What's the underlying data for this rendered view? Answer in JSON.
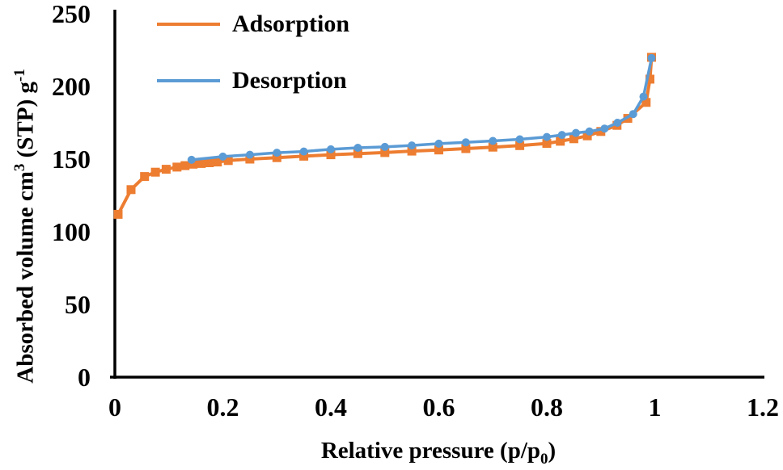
{
  "chart_data": {
    "type": "line",
    "title": "",
    "xlabel": "Relative pressure (p/p0)",
    "xlabel_parts": [
      {
        "text": "Relative pressure (p/p"
      },
      {
        "text": "0",
        "sub": true
      },
      {
        "text": ")"
      }
    ],
    "ylabel": "Absorbed volume cm3 (STP) g-1",
    "ylabel_parts": [
      {
        "text": "Absorbed volume cm"
      },
      {
        "text": "3",
        "sup": true
      },
      {
        "text": " (STP) g"
      },
      {
        "text": "-1",
        "sup": true
      }
    ],
    "xlim": [
      0,
      1.2
    ],
    "ylim": [
      0,
      250
    ],
    "x_ticks": [
      0,
      0.2,
      0.4,
      0.6,
      0.8,
      1,
      1.2
    ],
    "x_tick_labels": [
      "0",
      "0.2",
      "0.4",
      "0.6",
      "0.8",
      "1",
      "1.2"
    ],
    "y_ticks": [
      0,
      50,
      100,
      150,
      200,
      250
    ],
    "y_tick_labels": [
      "0",
      "50",
      "100",
      "150",
      "200",
      "250"
    ],
    "grid": false,
    "legend_position": "top-left-inside",
    "series": [
      {
        "name": "Adsorption",
        "color": "#ED7D31",
        "marker": "square",
        "points": [
          [
            0.006,
            112
          ],
          [
            0.03,
            129
          ],
          [
            0.055,
            138
          ],
          [
            0.075,
            141
          ],
          [
            0.095,
            143
          ],
          [
            0.115,
            144.5
          ],
          [
            0.13,
            145.5
          ],
          [
            0.145,
            146.5
          ],
          [
            0.16,
            147
          ],
          [
            0.175,
            147.5
          ],
          [
            0.19,
            148
          ],
          [
            0.21,
            149
          ],
          [
            0.25,
            150
          ],
          [
            0.3,
            151
          ],
          [
            0.35,
            152
          ],
          [
            0.4,
            153
          ],
          [
            0.45,
            153.8
          ],
          [
            0.5,
            154.5
          ],
          [
            0.55,
            155.5
          ],
          [
            0.6,
            156.3
          ],
          [
            0.65,
            157.2
          ],
          [
            0.7,
            158.2
          ],
          [
            0.75,
            159.3
          ],
          [
            0.8,
            160.8
          ],
          [
            0.825,
            162.3
          ],
          [
            0.85,
            164
          ],
          [
            0.875,
            166
          ],
          [
            0.9,
            169
          ],
          [
            0.93,
            173.2
          ],
          [
            0.95,
            178
          ],
          [
            0.984,
            189
          ],
          [
            0.991,
            205
          ],
          [
            0.994,
            220
          ]
        ]
      },
      {
        "name": "Desorption",
        "color": "#5B9BD5",
        "marker": "circle",
        "points": [
          [
            0.142,
            149.5
          ],
          [
            0.2,
            151.7
          ],
          [
            0.25,
            153
          ],
          [
            0.3,
            154.4
          ],
          [
            0.35,
            155.2
          ],
          [
            0.4,
            156.7
          ],
          [
            0.45,
            157.8
          ],
          [
            0.5,
            158.4
          ],
          [
            0.55,
            159.4
          ],
          [
            0.6,
            160.6
          ],
          [
            0.65,
            161.5
          ],
          [
            0.7,
            162.5
          ],
          [
            0.75,
            163.6
          ],
          [
            0.8,
            165.2
          ],
          [
            0.828,
            166.6
          ],
          [
            0.854,
            168
          ],
          [
            0.879,
            169
          ],
          [
            0.907,
            171
          ],
          [
            0.931,
            175
          ],
          [
            0.96,
            181
          ],
          [
            0.979,
            193
          ],
          [
            0.994,
            219.5
          ]
        ]
      }
    ]
  },
  "colors": {
    "adsorption": "#ED7D31",
    "desorption": "#5B9BD5",
    "axis": "#000000",
    "background": "#FFFFFF"
  }
}
